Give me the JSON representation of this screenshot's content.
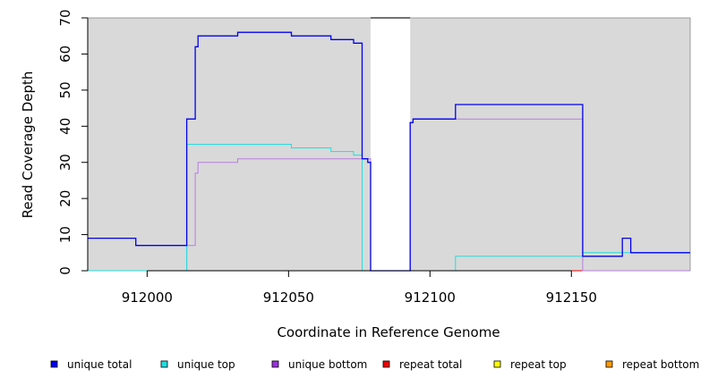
{
  "chart_data": {
    "type": "line",
    "title": "",
    "xlabel": "Coordinate in Reference Genome",
    "ylabel": "Read Coverage Depth",
    "xlim": [
      911979,
      912192
    ],
    "ylim": [
      0,
      70
    ],
    "x_ticks": [
      912000,
      912050,
      912100,
      912150
    ],
    "y_ticks": [
      0,
      10,
      20,
      30,
      40,
      50,
      60,
      70
    ],
    "gap_region": [
      912079,
      912093
    ],
    "background_color": "#d9d9d9",
    "legend_position": "bottom",
    "series": [
      {
        "name": "unique total",
        "color": "#0000ee",
        "points": [
          [
            911979,
            9
          ],
          [
            911996,
            9
          ],
          [
            911996,
            7
          ],
          [
            912014,
            7
          ],
          [
            912014,
            42
          ],
          [
            912017,
            42
          ],
          [
            912017,
            62
          ],
          [
            912018,
            62
          ],
          [
            912018,
            65
          ],
          [
            912032,
            65
          ],
          [
            912032,
            66
          ],
          [
            912051,
            66
          ],
          [
            912051,
            65
          ],
          [
            912065,
            65
          ],
          [
            912065,
            64
          ],
          [
            912073,
            64
          ],
          [
            912073,
            63
          ],
          [
            912076,
            63
          ],
          [
            912076,
            31
          ],
          [
            912078,
            31
          ],
          [
            912078,
            30
          ],
          [
            912079,
            30
          ],
          [
            912079,
            0
          ],
          [
            912093,
            0
          ],
          [
            912093,
            41
          ],
          [
            912094,
            41
          ],
          [
            912094,
            42
          ],
          [
            912109,
            42
          ],
          [
            912109,
            46
          ],
          [
            912154,
            46
          ],
          [
            912154,
            4
          ],
          [
            912168,
            4
          ],
          [
            912168,
            9
          ],
          [
            912171,
            9
          ],
          [
            912171,
            5
          ],
          [
            912192,
            5
          ]
        ]
      },
      {
        "name": "unique top",
        "color": "#22dddd",
        "points": [
          [
            911979,
            0
          ],
          [
            912014,
            0
          ],
          [
            912014,
            35
          ],
          [
            912051,
            35
          ],
          [
            912051,
            34
          ],
          [
            912065,
            34
          ],
          [
            912065,
            33
          ],
          [
            912073,
            33
          ],
          [
            912073,
            32
          ],
          [
            912076,
            32
          ],
          [
            912076,
            0
          ],
          [
            912109,
            0
          ],
          [
            912109,
            4
          ],
          [
            912154,
            4
          ],
          [
            912154,
            5
          ],
          [
            912192,
            5
          ]
        ]
      },
      {
        "name": "unique bottom",
        "color": "#b77ee0",
        "points": [
          [
            911979,
            0
          ],
          [
            912014,
            0
          ],
          [
            912014,
            7
          ],
          [
            912017,
            7
          ],
          [
            912017,
            27
          ],
          [
            912018,
            27
          ],
          [
            912018,
            30
          ],
          [
            912032,
            30
          ],
          [
            912032,
            31
          ],
          [
            912079,
            31
          ],
          [
            912079,
            0
          ],
          [
            912093,
            0
          ],
          [
            912093,
            41
          ],
          [
            912094,
            41
          ],
          [
            912094,
            42
          ],
          [
            912154,
            42
          ],
          [
            912154,
            0
          ],
          [
            912192,
            0
          ]
        ]
      },
      {
        "name": "repeat total",
        "color": "#ee0000",
        "points": [
          [
            911979,
            0
          ],
          [
            912192,
            0
          ]
        ]
      },
      {
        "name": "repeat top",
        "color": "#eeee00",
        "points": [
          [
            911979,
            0
          ],
          [
            912192,
            0
          ]
        ]
      },
      {
        "name": "repeat bottom",
        "color": "#ff9900",
        "points": [
          [
            911979,
            0
          ],
          [
            912079,
            0
          ],
          [
            912093,
            0
          ],
          [
            912192,
            0
          ]
        ]
      }
    ]
  },
  "legend": [
    {
      "label": "unique total",
      "color": "#0000ee"
    },
    {
      "label": "unique top",
      "color": "#22dddd"
    },
    {
      "label": "unique bottom",
      "color": "#9933dd"
    },
    {
      "label": "repeat total",
      "color": "#ee0000"
    },
    {
      "label": "repeat top",
      "color": "#ffff00"
    },
    {
      "label": "repeat bottom",
      "color": "#ff9900"
    }
  ]
}
